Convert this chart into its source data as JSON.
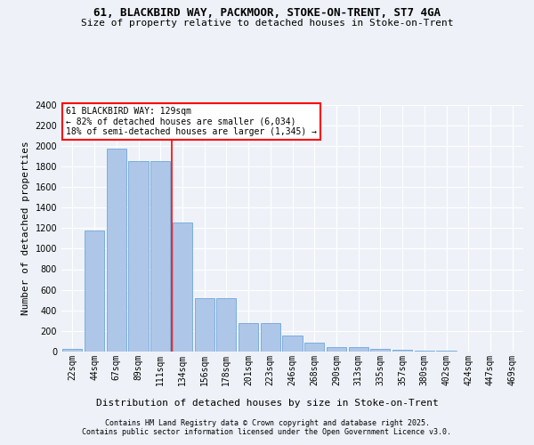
{
  "title1": "61, BLACKBIRD WAY, PACKMOOR, STOKE-ON-TRENT, ST7 4GA",
  "title2": "Size of property relative to detached houses in Stoke-on-Trent",
  "xlabel": "Distribution of detached houses by size in Stoke-on-Trent",
  "ylabel": "Number of detached properties",
  "bar_labels": [
    "22sqm",
    "44sqm",
    "67sqm",
    "89sqm",
    "111sqm",
    "134sqm",
    "156sqm",
    "178sqm",
    "201sqm",
    "223sqm",
    "246sqm",
    "268sqm",
    "290sqm",
    "313sqm",
    "335sqm",
    "357sqm",
    "380sqm",
    "402sqm",
    "424sqm",
    "447sqm",
    "469sqm"
  ],
  "bar_values": [
    30,
    1175,
    1975,
    1855,
    1855,
    1250,
    520,
    520,
    275,
    275,
    155,
    85,
    45,
    45,
    30,
    15,
    10,
    5,
    3,
    2,
    1
  ],
  "bar_color": "#aec6e8",
  "bar_edge_color": "#5b9bd5",
  "vline_x": 4.5,
  "vline_color": "red",
  "annotation_text": "61 BLACKBIRD WAY: 129sqm\n← 82% of detached houses are smaller (6,034)\n18% of semi-detached houses are larger (1,345) →",
  "ylim": [
    0,
    2400
  ],
  "yticks": [
    0,
    200,
    400,
    600,
    800,
    1000,
    1200,
    1400,
    1600,
    1800,
    2000,
    2200,
    2400
  ],
  "footer1": "Contains HM Land Registry data © Crown copyright and database right 2025.",
  "footer2": "Contains public sector information licensed under the Open Government Licence v3.0.",
  "bg_color": "#eef2f8",
  "plot_bg_color": "#eef2f8",
  "title_fontsize": 9,
  "subtitle_fontsize": 8,
  "ylabel_fontsize": 8,
  "xlabel_fontsize": 8,
  "tick_fontsize": 7,
  "footer_fontsize": 6
}
